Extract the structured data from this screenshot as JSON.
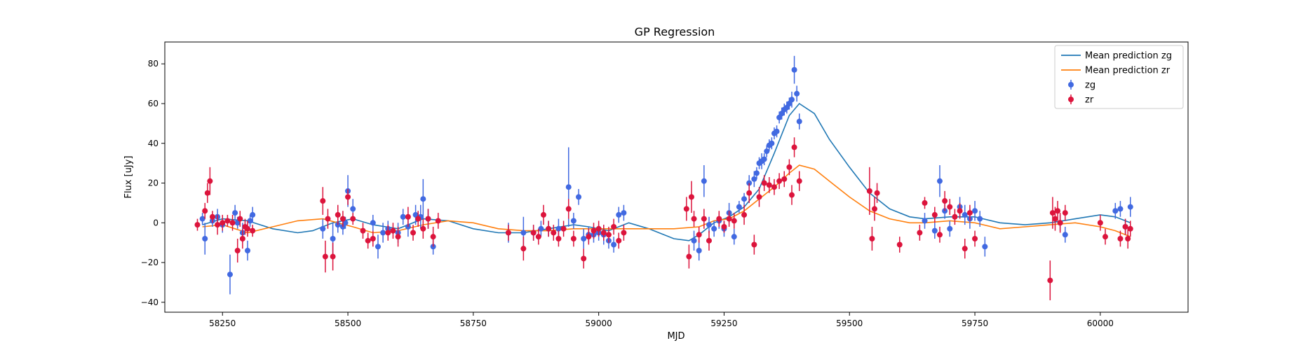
{
  "chart_data": {
    "type": "scatter",
    "title": "GP Regression",
    "xlabel": "MJD",
    "ylabel": "Flux [uJy]",
    "xlim": [
      58135,
      60175
    ],
    "ylim": [
      -45,
      91
    ],
    "xticks": [
      58250,
      58500,
      58750,
      59000,
      59250,
      59500,
      59750,
      60000
    ],
    "yticks": [
      -40,
      -20,
      0,
      20,
      40,
      60,
      80
    ],
    "grid": false,
    "legend_position": "top-right",
    "lines": [
      {
        "name": "Mean prediction zg",
        "color": "#1f77b4",
        "x": [
          58210,
          58250,
          58300,
          58350,
          58400,
          58430,
          58470,
          58510,
          58550,
          58600,
          58650,
          58700,
          58750,
          58800,
          58850,
          58900,
          58950,
          58980,
          59020,
          59060,
          59100,
          59150,
          59180,
          59200,
          59230,
          59260,
          59290,
          59320,
          59350,
          59380,
          59400,
          59430,
          59460,
          59500,
          59540,
          59580,
          59620,
          59650,
          59700,
          59750,
          59800,
          59850,
          59900,
          59950,
          60000,
          60030,
          60060
        ],
        "y": [
          -1,
          2,
          1,
          -3,
          -5,
          -4,
          0,
          2,
          -1,
          -3,
          2,
          1,
          -3,
          -5,
          -5,
          -3,
          -1,
          -2,
          -4,
          0,
          -3,
          -8,
          -9,
          -6,
          0,
          3,
          8,
          17,
          35,
          54,
          60,
          55,
          42,
          28,
          15,
          7,
          3,
          2,
          3,
          3,
          0,
          -1,
          0,
          2,
          4,
          3,
          0
        ]
      },
      {
        "name": "Mean prediction zr",
        "color": "#ff7f0e",
        "x": [
          58210,
          58250,
          58300,
          58350,
          58400,
          58450,
          58480,
          58510,
          58550,
          58600,
          58650,
          58700,
          58750,
          58800,
          58850,
          58900,
          58950,
          59000,
          59050,
          59100,
          59150,
          59200,
          59230,
          59260,
          59290,
          59320,
          59350,
          59380,
          59400,
          59430,
          59460,
          59500,
          59540,
          59580,
          59620,
          59650,
          59700,
          59750,
          59800,
          59850,
          59900,
          59950,
          60000,
          60030,
          60060
        ],
        "y": [
          -2,
          -1,
          -5,
          -2,
          1,
          2,
          0,
          -2,
          -5,
          -4,
          -1,
          1,
          0,
          -3,
          -4,
          -4,
          -3,
          -3,
          -3,
          -3,
          -3,
          -2,
          1,
          2,
          6,
          12,
          18,
          25,
          29,
          27,
          21,
          13,
          6,
          2,
          0,
          0,
          1,
          0,
          -3,
          -2,
          -1,
          0,
          -2,
          -4,
          -7
        ]
      }
    ],
    "series": [
      {
        "name": "zg",
        "color": "#4169e1",
        "x": [
          58210,
          58215,
          58230,
          58240,
          58250,
          58265,
          58275,
          58280,
          58290,
          58300,
          58305,
          58310,
          58450,
          58470,
          58480,
          58490,
          58495,
          58500,
          58510,
          58550,
          58560,
          58570,
          58580,
          58600,
          58610,
          58620,
          58635,
          58645,
          58650,
          58660,
          58670,
          58820,
          58850,
          58870,
          58885,
          58900,
          58920,
          58940,
          58950,
          58960,
          58970,
          58980,
          58990,
          59000,
          59010,
          59020,
          59030,
          59040,
          59050,
          59190,
          59200,
          59210,
          59220,
          59230,
          59240,
          59250,
          59260,
          59270,
          59280,
          59290,
          59300,
          59310,
          59315,
          59320,
          59325,
          59330,
          59335,
          59340,
          59345,
          59350,
          59355,
          59360,
          59365,
          59370,
          59375,
          59380,
          59385,
          59390,
          59395,
          59400,
          59650,
          59670,
          59680,
          59690,
          59700,
          59720,
          59730,
          59740,
          59750,
          59760,
          59770,
          59920,
          59930,
          60030,
          60040,
          60050,
          60060
        ],
        "y": [
          2,
          -8,
          1,
          3,
          -1,
          -26,
          5,
          0,
          -5,
          -14,
          1,
          4,
          -3,
          -8,
          -1,
          -2,
          0,
          16,
          7,
          0,
          -12,
          -5,
          -3,
          -5,
          3,
          -2,
          4,
          3,
          12,
          2,
          -12,
          -5,
          -5,
          -5,
          -3,
          -3,
          -3,
          18,
          1,
          13,
          -8,
          -6,
          -6,
          -5,
          -6,
          -9,
          -11,
          4,
          5,
          -9,
          -14,
          21,
          -1,
          -3,
          1,
          -3,
          5,
          -7,
          8,
          12,
          20,
          22,
          25,
          30,
          31,
          32,
          36,
          39,
          40,
          45,
          46,
          53,
          55,
          57,
          58,
          60,
          62,
          77,
          65,
          51,
          1,
          -4,
          21,
          6,
          -3,
          8,
          4,
          2,
          6,
          2,
          -12,
          0,
          -6,
          6,
          7,
          -2,
          8
        ],
        "err": [
          3,
          8,
          3,
          4,
          4,
          10,
          4,
          3,
          5,
          5,
          3,
          4,
          5,
          8,
          4,
          4,
          3,
          8,
          5,
          4,
          6,
          5,
          4,
          5,
          4,
          5,
          5,
          6,
          10,
          5,
          4,
          5,
          8,
          4,
          4,
          4,
          5,
          20,
          4,
          4,
          5,
          4,
          4,
          4,
          5,
          4,
          4,
          4,
          4,
          5,
          5,
          8,
          4,
          4,
          4,
          4,
          5,
          4,
          3,
          3,
          4,
          4,
          3,
          3,
          4,
          3,
          3,
          3,
          3,
          3,
          3,
          3,
          3,
          3,
          3,
          3,
          4,
          7,
          4,
          4,
          4,
          4,
          8,
          4,
          4,
          5,
          5,
          5,
          5,
          4,
          5,
          4,
          4,
          4,
          4,
          4,
          5
        ]
      },
      {
        "name": "zr",
        "color": "#dc143c",
        "x": [
          58200,
          58215,
          58220,
          58225,
          58230,
          58240,
          58250,
          58260,
          58270,
          58280,
          58285,
          58290,
          58295,
          58300,
          58310,
          58450,
          58455,
          58460,
          58470,
          58480,
          58490,
          58500,
          58510,
          58530,
          58540,
          58550,
          58580,
          58590,
          58600,
          58620,
          58630,
          58640,
          58650,
          58660,
          58670,
          58680,
          58820,
          58850,
          58870,
          58880,
          58890,
          58900,
          58910,
          58920,
          58930,
          58940,
          58950,
          58970,
          58980,
          58990,
          59000,
          59010,
          59020,
          59030,
          59040,
          59050,
          59175,
          59180,
          59185,
          59190,
          59200,
          59210,
          59220,
          59240,
          59250,
          59260,
          59270,
          59290,
          59300,
          59310,
          59320,
          59330,
          59340,
          59350,
          59360,
          59370,
          59380,
          59385,
          59390,
          59400,
          59540,
          59545,
          59550,
          59555,
          59600,
          59640,
          59650,
          59670,
          59680,
          59690,
          59700,
          59710,
          59720,
          59730,
          59740,
          59750,
          59900,
          59905,
          59910,
          59915,
          59920,
          59930,
          60000,
          60010,
          60040,
          60050,
          60055,
          60060
        ],
        "y": [
          -1,
          6,
          15,
          21,
          3,
          -1,
          0,
          1,
          0,
          -14,
          2,
          -8,
          -2,
          -3,
          -4,
          11,
          -17,
          2,
          -17,
          4,
          2,
          13,
          2,
          -4,
          -9,
          -8,
          -5,
          -4,
          -7,
          3,
          -5,
          2,
          -3,
          2,
          -7,
          1,
          -5,
          -13,
          -5,
          -7,
          4,
          -3,
          -5,
          -8,
          -3,
          7,
          -8,
          -18,
          -7,
          -4,
          -3,
          -5,
          -6,
          -2,
          -9,
          -5,
          7,
          -17,
          13,
          2,
          -6,
          2,
          -9,
          2,
          -2,
          2,
          1,
          4,
          15,
          -11,
          13,
          20,
          19,
          18,
          21,
          22,
          28,
          14,
          38,
          21,
          16,
          -8,
          7,
          15,
          -11,
          -5,
          10,
          4,
          -6,
          11,
          8,
          3,
          6,
          -13,
          5,
          -8,
          -29,
          5,
          2,
          6,
          0,
          5,
          0,
          -7,
          -8,
          -2,
          -8,
          -3
        ],
        "err": [
          3,
          4,
          5,
          7,
          3,
          5,
          4,
          3,
          4,
          6,
          4,
          5,
          4,
          4,
          3,
          7,
          8,
          5,
          7,
          5,
          4,
          4,
          3,
          4,
          4,
          4,
          4,
          4,
          5,
          5,
          4,
          4,
          5,
          5,
          5,
          4,
          4,
          6,
          4,
          4,
          5,
          4,
          4,
          4,
          4,
          5,
          4,
          5,
          4,
          4,
          4,
          4,
          4,
          4,
          4,
          4,
          6,
          6,
          8,
          4,
          4,
          5,
          5,
          4,
          3,
          4,
          4,
          5,
          5,
          5,
          5,
          4,
          4,
          4,
          4,
          4,
          4,
          5,
          5,
          5,
          12,
          6,
          6,
          5,
          4,
          4,
          3,
          4,
          4,
          5,
          4,
          4,
          4,
          5,
          4,
          4,
          10,
          8,
          6,
          5,
          5,
          4,
          4,
          4,
          4,
          4,
          5,
          4
        ]
      }
    ]
  }
}
